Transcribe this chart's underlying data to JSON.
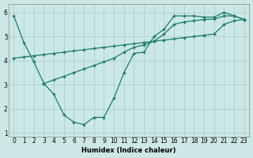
{
  "xlabel": "Humidex (Indice chaleur)",
  "bg_color": "#cce8e6",
  "line_color": "#1a7a6e",
  "grid_color": "#aad0cc",
  "curve1_x": [
    0,
    1,
    2,
    3,
    4,
    5,
    6,
    7,
    8,
    9,
    10,
    11,
    12,
    13,
    14,
    15,
    16,
    17,
    18,
    19,
    20,
    21,
    22,
    23
  ],
  "curve1_y": [
    5.85,
    4.75,
    3.95,
    3.05,
    2.6,
    1.75,
    1.45,
    1.35,
    1.65,
    1.65,
    2.45,
    3.5,
    4.3,
    4.35,
    5.0,
    5.3,
    5.85,
    5.85,
    5.85,
    5.8,
    5.8,
    6.0,
    5.85,
    5.7
  ],
  "curve2_x": [
    0,
    1,
    2,
    3,
    4,
    5,
    6,
    7,
    8,
    9,
    10,
    11,
    12,
    13,
    14,
    15,
    16,
    17,
    18,
    19,
    20,
    21,
    22,
    23
  ],
  "curve2_y": [
    4.1,
    4.15,
    4.2,
    4.25,
    4.3,
    4.35,
    4.4,
    4.45,
    4.5,
    4.55,
    4.6,
    4.65,
    4.7,
    4.75,
    4.8,
    4.85,
    4.9,
    4.95,
    5.0,
    5.05,
    5.1,
    5.5,
    5.65,
    5.7
  ],
  "curve3_x": [
    3,
    4,
    5,
    6,
    7,
    8,
    9,
    10,
    11,
    12,
    13,
    14,
    15,
    16,
    17,
    18,
    19,
    20,
    21,
    22,
    23
  ],
  "curve3_y": [
    3.05,
    3.2,
    3.35,
    3.5,
    3.65,
    3.8,
    3.95,
    4.1,
    4.35,
    4.55,
    4.65,
    4.8,
    5.1,
    5.5,
    5.6,
    5.65,
    5.7,
    5.72,
    5.85,
    5.85,
    5.7
  ],
  "xlim": [
    -0.5,
    23.5
  ],
  "ylim": [
    0.85,
    6.35
  ],
  "xticks": [
    0,
    1,
    2,
    3,
    4,
    5,
    6,
    7,
    8,
    9,
    10,
    11,
    12,
    13,
    14,
    15,
    16,
    17,
    18,
    19,
    20,
    21,
    22,
    23
  ],
  "yticks": [
    1,
    2,
    3,
    4,
    5,
    6
  ]
}
